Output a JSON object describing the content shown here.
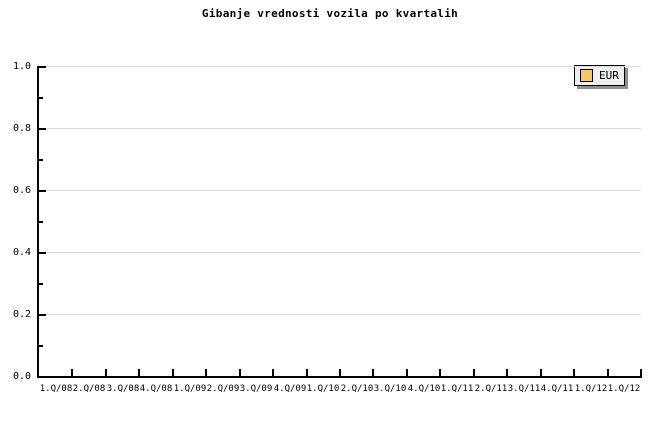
{
  "chart_data": {
    "type": "line",
    "title": "Gibanje vrednosti vozila po kvartalih",
    "categories": [
      "1.Q/08",
      "2.Q/08",
      "3.Q/08",
      "4.Q/08",
      "1.Q/09",
      "2.Q/09",
      "3.Q/09",
      "4.Q/09",
      "1.Q/10",
      "2.Q/10",
      "3.Q/10",
      "4.Q/10",
      "1.Q/11",
      "2.Q/11",
      "3.Q/11",
      "4.Q/11",
      "1.Q/12",
      "1.Q/12"
    ],
    "series": [
      {
        "name": "EUR",
        "color": "#fac862",
        "values": []
      }
    ],
    "xlabel": "",
    "ylabel": "",
    "ylim": [
      0.0,
      1.0
    ],
    "y_tick_labels": [
      "0.0",
      "0.2",
      "0.4",
      "0.6",
      "0.8",
      "1.0"
    ],
    "y_minor_tick_step": 0.1,
    "grid": "horizontal major gridlines only",
    "legend": {
      "position": "top-right",
      "entries": [
        {
          "label": "EUR",
          "swatch_color": "#fac862"
        }
      ]
    },
    "colors": {
      "background": "#ffffff",
      "axis": "#000000",
      "gridline": "#dcdcdc",
      "text": "#000000",
      "legend_background": "#efefef",
      "legend_border": "#000000",
      "legend_shadow": "#8e8e8e",
      "swatch_border": "#000000"
    }
  }
}
